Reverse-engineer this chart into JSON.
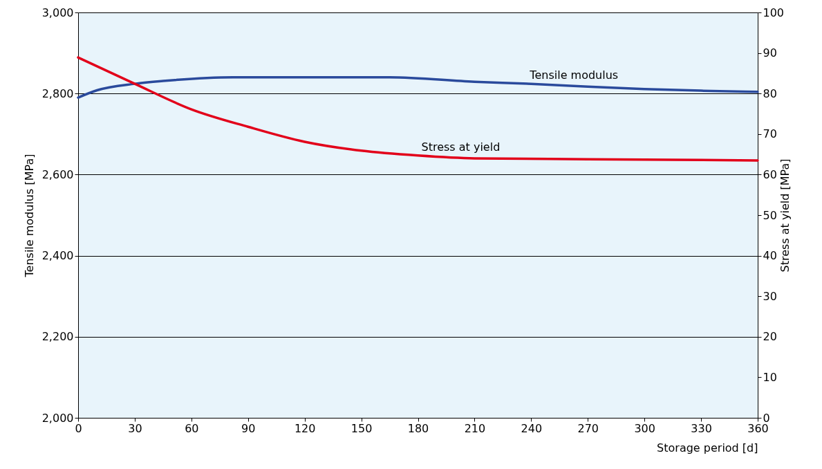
{
  "chart_data": {
    "type": "line",
    "xlabel": "Storage period [d]",
    "ylabel": "Tensile modulus [MPa]",
    "y2label": "Stress at yield [MPa]",
    "xlim": [
      0,
      360
    ],
    "xticks": [
      0,
      30,
      60,
      90,
      120,
      150,
      180,
      210,
      240,
      270,
      300,
      330,
      360
    ],
    "ylim": [
      2000,
      3000
    ],
    "yticks": [
      {
        "value": 2000,
        "label": "2,000"
      },
      {
        "value": 2200,
        "label": "2,200"
      },
      {
        "value": 2400,
        "label": "2,400"
      },
      {
        "value": 2600,
        "label": "2,600"
      },
      {
        "value": 2800,
        "label": "2,800"
      },
      {
        "value": 3000,
        "label": "3,000"
      }
    ],
    "y2lim": [
      0,
      100
    ],
    "y2ticks": [
      0,
      10,
      20,
      30,
      40,
      50,
      60,
      70,
      80,
      90,
      100
    ],
    "grid": "y",
    "line_style": "solid",
    "marker": "none",
    "series": [
      {
        "name": "Tensile modulus",
        "color": "#2a4a9c",
        "x": [
          0,
          10,
          30,
          45,
          82,
          165,
          210,
          240,
          270,
          300,
          330,
          360
        ],
        "values": [
          2790,
          2808,
          2824,
          2831,
          2840,
          2840,
          2829,
          2824,
          2817,
          2811,
          2807,
          2804
        ]
      },
      {
        "name": "Stress at yield",
        "color": "#e2001a",
        "axis": "y2",
        "x": [
          0,
          30,
          60,
          90,
          120,
          150,
          180,
          210,
          270,
          360
        ],
        "values": [
          88.9,
          82.4,
          76.1,
          71.8,
          68.1,
          65.9,
          64.7,
          64.0,
          63.8,
          63.5
        ]
      }
    ]
  }
}
